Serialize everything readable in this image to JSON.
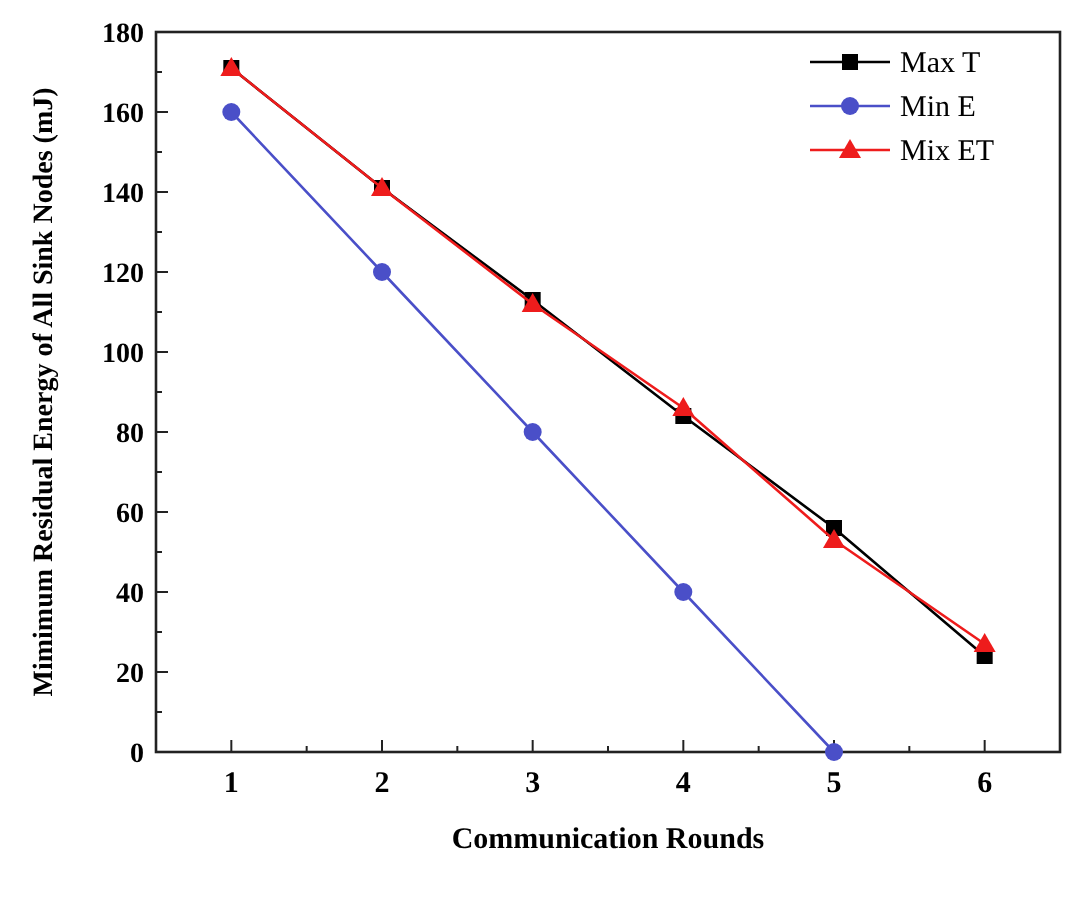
{
  "chart_data": {
    "type": "line",
    "xlabel": "Communication Rounds",
    "ylabel": "Mimimum Residual Energy of All Sink Nodes (mJ)",
    "x": [
      1,
      2,
      3,
      4,
      5,
      6
    ],
    "xlim": [
      0.5,
      6.5
    ],
    "xticks": [
      1,
      {
        "value": 1.5,
        "label": null
      },
      2,
      {
        "value": 2.5,
        "label": null
      },
      3,
      {
        "value": 3.5,
        "label": null
      },
      4,
      {
        "value": 4.5,
        "label": null
      },
      5,
      {
        "value": 5.5,
        "label": null
      },
      6
    ],
    "ylim": [
      0,
      180
    ],
    "yticks": [
      0,
      {
        "value": 10,
        "label": null
      },
      20,
      {
        "value": 30,
        "label": null
      },
      40,
      {
        "value": 50,
        "label": null
      },
      60,
      {
        "value": 70,
        "label": null
      },
      80,
      {
        "value": 90,
        "label": null
      },
      100,
      {
        "value": 110,
        "label": null
      },
      120,
      {
        "value": 130,
        "label": null
      },
      140,
      {
        "value": 150,
        "label": null
      },
      160,
      {
        "value": 170,
        "label": null
      },
      180
    ],
    "grid": false,
    "legend": "top right",
    "series": [
      {
        "name": "Max T",
        "color": "#000000",
        "marker": "square",
        "values": [
          171,
          141,
          113,
          84,
          56,
          24
        ]
      },
      {
        "name": "Min E",
        "color": "#4a4fc8",
        "marker": "circle",
        "values": [
          160,
          120,
          80,
          40,
          0,
          null
        ]
      },
      {
        "name": "Mix ET",
        "color": "#ee1c1c",
        "marker": "triangle",
        "values": [
          171,
          141,
          112,
          86,
          53,
          27
        ]
      }
    ]
  }
}
